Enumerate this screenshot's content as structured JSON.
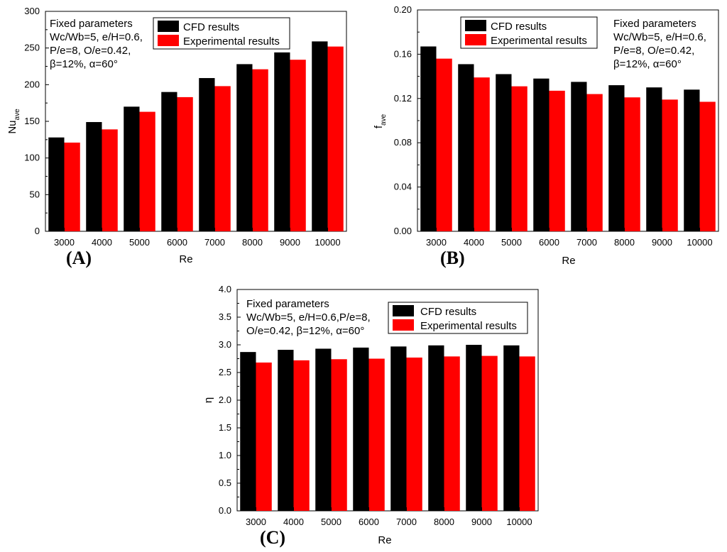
{
  "colors": {
    "cfd": "#000000",
    "experimental": "#ff0000"
  },
  "chart_data": [
    {
      "type": "bar",
      "panel_label": "(A)",
      "categories": [
        "3000",
        "4000",
        "5000",
        "6000",
        "7000",
        "8000",
        "9000",
        "10000"
      ],
      "series": [
        {
          "name": "CFD results",
          "values": [
            128,
            149,
            170,
            190,
            209,
            228,
            244,
            259
          ]
        },
        {
          "name": "Experimental results",
          "values": [
            121,
            139,
            163,
            183,
            198,
            221,
            234,
            252
          ]
        }
      ],
      "xlabel": "Re",
      "ylabel_main": "Nu",
      "ylabel_sub": "ave",
      "ylim": [
        0,
        300
      ],
      "yticks": [
        "0",
        "50",
        "100",
        "150",
        "200",
        "250",
        "300"
      ],
      "annotation_lines": [
        "Fixed parameters",
        "Wc/Wb=5, e/H=0.6,",
        "P/e=8, O/e=0.42,",
        "β=12%, α=60°"
      ],
      "legend_position": "top-right"
    },
    {
      "type": "bar",
      "panel_label": "(B)",
      "categories": [
        "3000",
        "4000",
        "5000",
        "6000",
        "7000",
        "8000",
        "9000",
        "10000"
      ],
      "series": [
        {
          "name": "CFD results",
          "values": [
            0.167,
            0.151,
            0.142,
            0.138,
            0.135,
            0.132,
            0.13,
            0.128
          ]
        },
        {
          "name": "Experimental results",
          "values": [
            0.156,
            0.139,
            0.131,
            0.127,
            0.124,
            0.121,
            0.119,
            0.117
          ]
        }
      ],
      "xlabel": "Re",
      "ylabel_main": "f",
      "ylabel_sub": "ave",
      "ylim": [
        0,
        0.2
      ],
      "yticks": [
        "0.00",
        "0.04",
        "0.08",
        "0.12",
        "0.16",
        "0.20"
      ],
      "annotation_lines": [
        "Fixed parameters",
        "Wc/Wb=5, e/H=0.6,",
        "P/e=8, O/e=0.42,",
        "β=12%, α=60°"
      ],
      "legend_position": "top-left"
    },
    {
      "type": "bar",
      "panel_label": "(C)",
      "categories": [
        "3000",
        "4000",
        "5000",
        "6000",
        "7000",
        "8000",
        "9000",
        "10000"
      ],
      "series": [
        {
          "name": "CFD results",
          "values": [
            2.87,
            2.91,
            2.93,
            2.95,
            2.97,
            2.99,
            3.0,
            2.99
          ]
        },
        {
          "name": "Experimental results",
          "values": [
            2.68,
            2.72,
            2.74,
            2.75,
            2.77,
            2.79,
            2.8,
            2.79
          ]
        }
      ],
      "xlabel": "Re",
      "ylabel_main": "η",
      "ylabel_sub": "",
      "ylim": [
        0,
        4
      ],
      "yticks": [
        "0.0",
        "0.5",
        "1.0",
        "1.5",
        "2.0",
        "2.5",
        "3.0",
        "3.5",
        "4.0"
      ],
      "annotation_lines": [
        "Fixed parameters",
        "Wc/Wb=5, e/H=0.6,P/e=8,",
        "O/e=0.42, β=12%, α=60°"
      ],
      "legend_position": "top-right"
    }
  ]
}
